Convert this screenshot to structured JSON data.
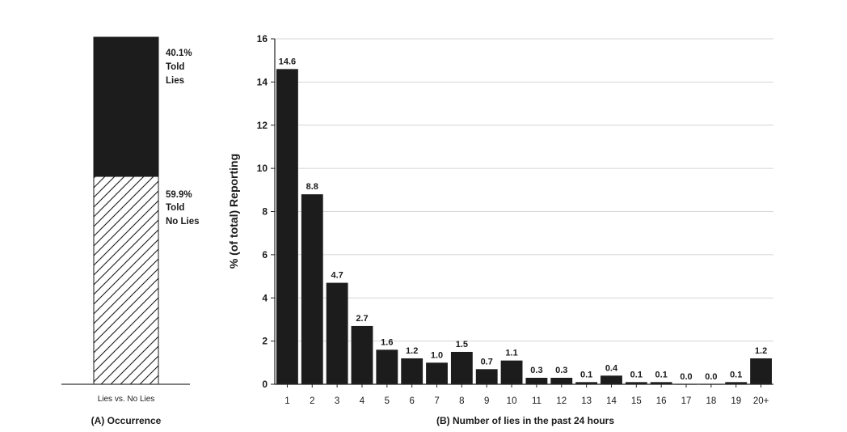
{
  "chart_data": [
    {
      "type": "bar",
      "stacked": true,
      "categories": [
        "Lies vs. No Lies"
      ],
      "series": [
        {
          "name": "Told No Lies",
          "values": [
            59.9
          ],
          "pattern": "hatched"
        },
        {
          "name": "Told Lies",
          "values": [
            40.1
          ],
          "pattern": "solid"
        }
      ],
      "segment_labels": [
        {
          "pct": "59.9%",
          "line1": "Told",
          "line2": "No Lies"
        },
        {
          "pct": "40.1%",
          "line1": "Told",
          "line2": "Lies"
        }
      ],
      "xlabel": "Lies vs. No Lies",
      "caption": "(A) Occurrence",
      "ylim": [
        0,
        100
      ]
    },
    {
      "type": "bar",
      "categories": [
        "1",
        "2",
        "3",
        "4",
        "5",
        "6",
        "7",
        "8",
        "9",
        "10",
        "11",
        "12",
        "13",
        "14",
        "15",
        "16",
        "17",
        "18",
        "19",
        "20+"
      ],
      "values": [
        14.6,
        8.8,
        4.7,
        2.7,
        1.6,
        1.2,
        1.0,
        1.5,
        0.7,
        1.1,
        0.3,
        0.3,
        0.1,
        0.4,
        0.1,
        0.1,
        0.0,
        0.0,
        0.1,
        1.2
      ],
      "value_labels": [
        "14.6",
        "8.8",
        "4.7",
        "2.7",
        "1.6",
        "1.2",
        "1.0",
        "1.5",
        "0.7",
        "1.1",
        "0.3",
        "0.3",
        "0.1",
        "0.4",
        "0.1",
        "0.1",
        "0.0",
        "0.0",
        "0.1",
        "1.2"
      ],
      "xlabel": "(B) Number of lies in the past 24 hours",
      "ylabel": "% (of total) Reporting",
      "ylim": [
        0,
        16
      ],
      "yticks": [
        "0",
        "2",
        "4",
        "6",
        "8",
        "10",
        "12",
        "14",
        "16"
      ],
      "grid": true,
      "bar_color": "#1c1c1c"
    }
  ]
}
